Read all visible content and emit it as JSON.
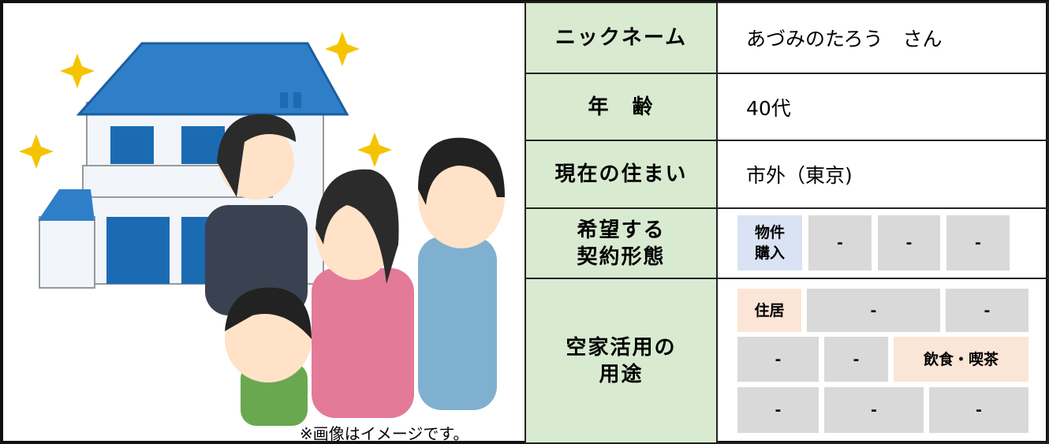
{
  "caption": "※画像はイメージです。",
  "table": {
    "nickname": {
      "label": "ニックネーム",
      "value": "あづみのたろう　さん"
    },
    "age": {
      "label": "年　齢",
      "value": "40代"
    },
    "residence": {
      "label": "現在の住まい",
      "value": "市外（東京)"
    },
    "contract": {
      "label": [
        "希望する",
        "契約形態"
      ],
      "tags": [
        "物件\n購入",
        "-",
        "-",
        "-"
      ]
    },
    "usage": {
      "label": [
        "空家活用の",
        "用途"
      ],
      "tags": [
        [
          "住居",
          "-",
          "-"
        ],
        [
          "-",
          "-",
          "飲食・喫茶"
        ],
        [
          "-",
          "-",
          "-"
        ]
      ]
    }
  }
}
